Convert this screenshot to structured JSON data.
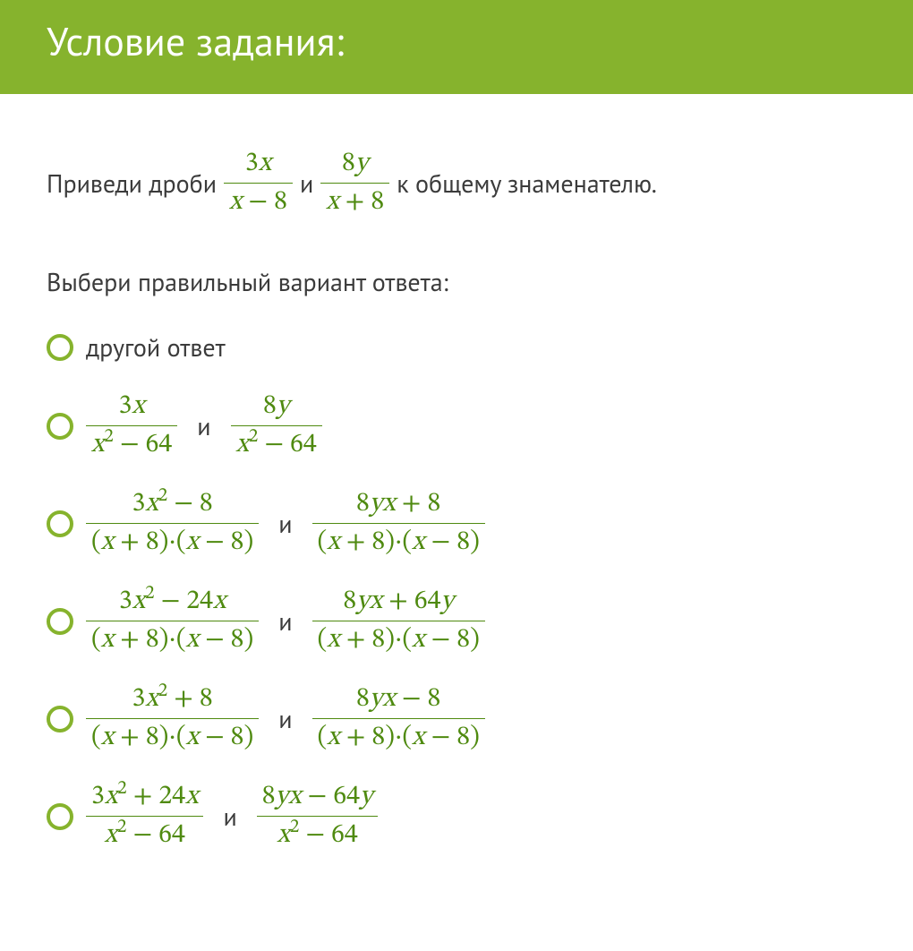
{
  "colors": {
    "header_bg": "#86b32d",
    "header_text": "#ffffff",
    "body_text": "#3b3b3b",
    "math_color": "#4f8a10",
    "radio_border": "#86b32d",
    "background": "#ffffff"
  },
  "typography": {
    "header_fontsize": 44,
    "body_fontsize": 28,
    "math_fontsize": 30
  },
  "header": {
    "title": "Условие задания:"
  },
  "prompt": {
    "lead": "Приведи дроби",
    "frac1": {
      "num": "3x",
      "den": "x − 8"
    },
    "mid": "и",
    "frac2": {
      "num": "8y",
      "den": "x + 8"
    },
    "tail": "к общему знаменателю."
  },
  "instruction": "Выбери правильный вариант ответа:",
  "conj": "и",
  "options": [
    {
      "kind": "text",
      "text": "другой ответ"
    },
    {
      "kind": "pair",
      "a": {
        "num": "3x",
        "den": "x² − 64"
      },
      "b": {
        "num": "8y",
        "den": "x² − 64"
      }
    },
    {
      "kind": "pair",
      "a": {
        "num": "3x² − 8",
        "den": "(x + 8)·(x − 8)"
      },
      "b": {
        "num": "8yx + 8",
        "den": "(x + 8)·(x − 8)"
      }
    },
    {
      "kind": "pair",
      "a": {
        "num": "3x² − 24x",
        "den": "(x + 8)·(x − 8)"
      },
      "b": {
        "num": "8yx + 64y",
        "den": "(x + 8)·(x − 8)"
      }
    },
    {
      "kind": "pair",
      "a": {
        "num": "3x² + 8",
        "den": "(x + 8)·(x − 8)"
      },
      "b": {
        "num": "8yx − 8",
        "den": "(x + 8)·(x − 8)"
      }
    },
    {
      "kind": "pair",
      "a": {
        "num": "3x² + 24x",
        "den": "x² − 64"
      },
      "b": {
        "num": "8yx − 64y",
        "den": "x² − 64"
      }
    }
  ]
}
